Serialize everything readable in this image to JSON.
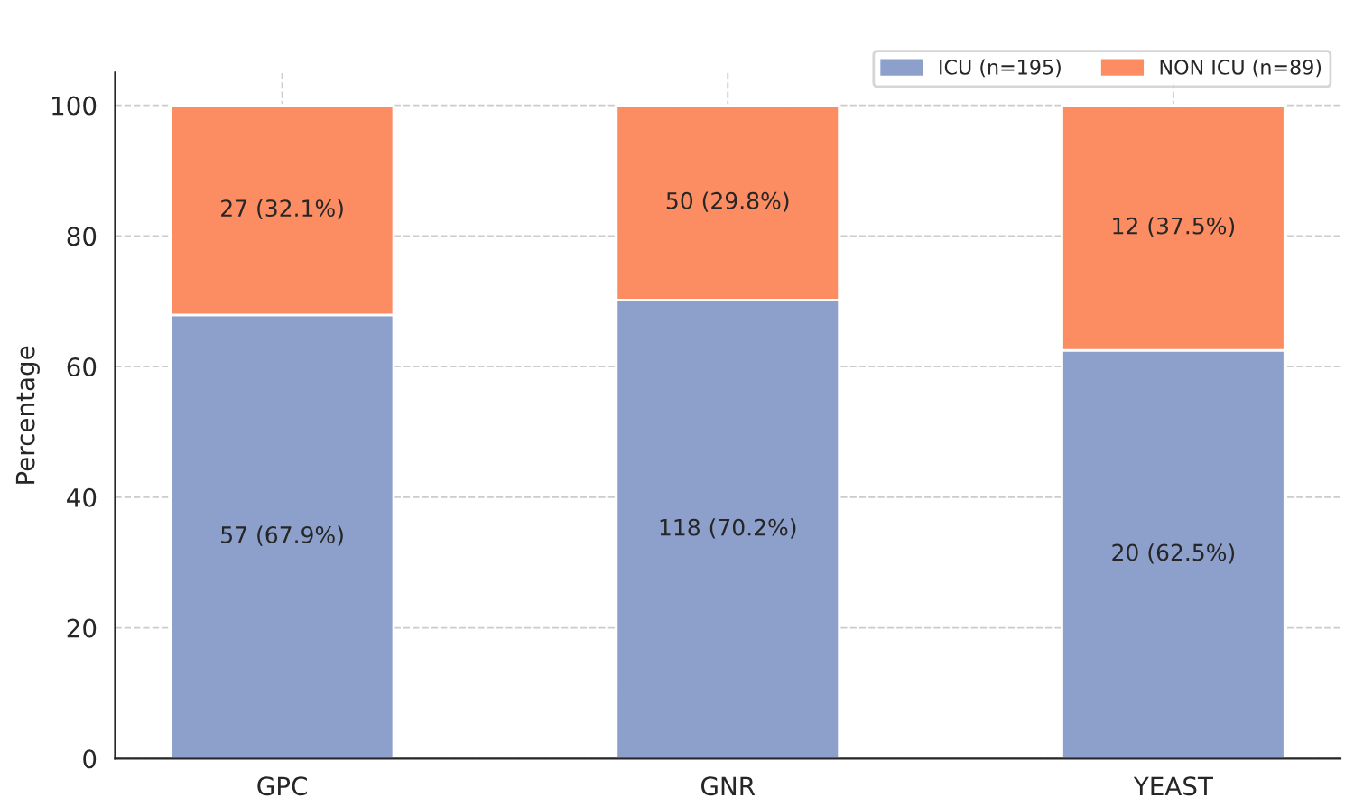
{
  "chart_data": {
    "type": "bar",
    "stacked": true,
    "ylabel": "Percentage",
    "categories": [
      "GPC",
      "GNR",
      "YEAST"
    ],
    "series": [
      {
        "name": "ICU (n=195)",
        "color": "#8da0cb",
        "values": [
          67.9,
          70.2,
          62.5
        ],
        "value_labels": [
          "57 (67.9%)",
          "118 (70.2%)",
          "20 (62.5%)"
        ]
      },
      {
        "name": "NON ICU (n=89)",
        "color": "#fc8d62",
        "values": [
          32.1,
          29.8,
          37.5
        ],
        "value_labels": [
          "27 (32.1%)",
          "50 (29.8%)",
          "12 (37.5%)"
        ]
      }
    ],
    "ylim": [
      0,
      105
    ],
    "yticks": [
      0,
      20,
      40,
      60,
      80,
      100
    ],
    "grid": true,
    "legend": "top right"
  }
}
